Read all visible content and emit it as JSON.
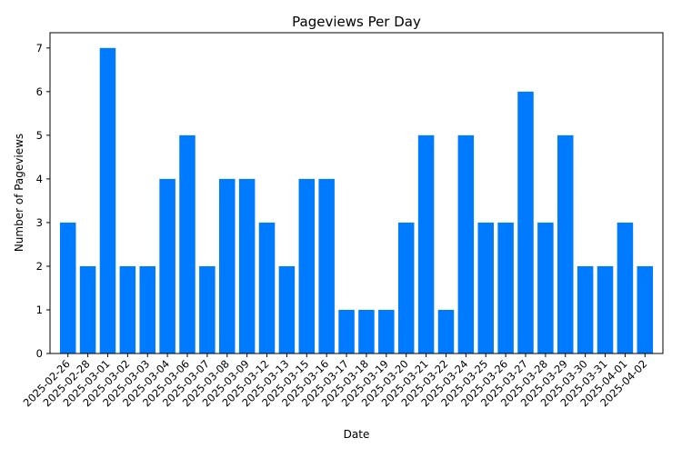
{
  "chart_data": {
    "type": "bar",
    "title": "Pageviews Per Day",
    "xlabel": "Date",
    "ylabel": "Number of Pageviews",
    "categories": [
      "2025-02-26",
      "2025-02-28",
      "2025-03-01",
      "2025-03-02",
      "2025-03-03",
      "2025-03-04",
      "2025-03-06",
      "2025-03-07",
      "2025-03-08",
      "2025-03-09",
      "2025-03-12",
      "2025-03-13",
      "2025-03-15",
      "2025-03-16",
      "2025-03-17",
      "2025-03-18",
      "2025-03-19",
      "2025-03-20",
      "2025-03-21",
      "2025-03-22",
      "2025-03-24",
      "2025-03-25",
      "2025-03-26",
      "2025-03-27",
      "2025-03-28",
      "2025-03-29",
      "2025-03-30",
      "2025-03-31",
      "2025-04-01",
      "2025-04-02"
    ],
    "values": [
      3,
      2,
      7,
      2,
      2,
      4,
      5,
      2,
      4,
      4,
      3,
      2,
      4,
      4,
      1,
      1,
      1,
      3,
      5,
      1,
      5,
      3,
      3,
      6,
      3,
      5,
      2,
      2,
      3,
      2
    ],
    "ylim": [
      0,
      7.35
    ],
    "yticks": [
      0,
      1,
      2,
      3,
      4,
      5,
      6,
      7
    ],
    "grid": false,
    "bar_color": "#007bff"
  }
}
